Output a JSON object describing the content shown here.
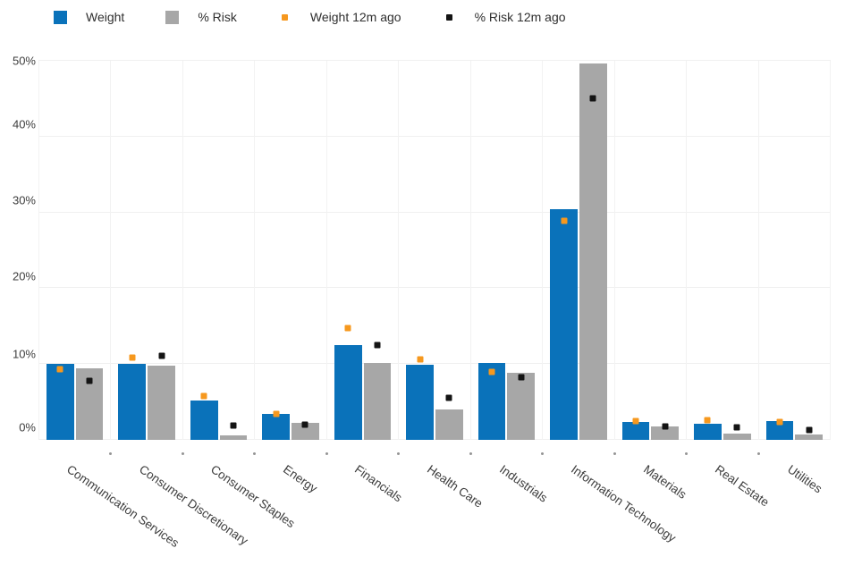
{
  "legend": {
    "items": [
      {
        "label": "Weight",
        "swatch": "square",
        "color": "#0a72ba"
      },
      {
        "label": "% Risk",
        "swatch": "square",
        "color": "#a7a7a7"
      },
      {
        "label": "Weight 12m ago",
        "swatch": "small-square",
        "color": "#f6981e"
      },
      {
        "label": "% Risk 12m ago",
        "swatch": "small-square",
        "color": "#141414"
      }
    ]
  },
  "chart_data": {
    "type": "bar",
    "title": "",
    "xlabel": "",
    "ylabel": "",
    "ylim": [
      0,
      50
    ],
    "yticks": [
      "0%",
      "10%",
      "20%",
      "30%",
      "40%",
      "50%"
    ],
    "grid": true,
    "legend_position": "top-left",
    "categories": [
      "Communication Services",
      "Consumer Discretionary",
      "Consumer Staples",
      "Energy",
      "Financials",
      "Health Care",
      "Industrials",
      "Information Technology",
      "Materials",
      "Real Estate",
      "Utilities"
    ],
    "series": [
      {
        "name": "Weight",
        "type": "bar",
        "color": "#0a72ba",
        "values": [
          10.0,
          10.0,
          5.2,
          3.4,
          12.5,
          9.9,
          10.2,
          30.4,
          2.4,
          2.1,
          2.5
        ]
      },
      {
        "name": "% Risk",
        "type": "bar",
        "color": "#a7a7a7",
        "values": [
          9.4,
          9.8,
          0.6,
          2.2,
          10.2,
          4.0,
          8.9,
          49.6,
          1.8,
          0.8,
          0.7
        ]
      },
      {
        "name": "Weight 12m ago",
        "type": "marker",
        "color": "#f6981e",
        "values": [
          9.3,
          10.8,
          5.8,
          3.4,
          14.7,
          10.6,
          9.0,
          28.9,
          2.5,
          2.6,
          2.4
        ]
      },
      {
        "name": "% Risk 12m ago",
        "type": "marker",
        "color": "#141414",
        "values": [
          7.8,
          11.1,
          1.9,
          2.0,
          12.5,
          5.6,
          8.3,
          45.0,
          1.8,
          1.6,
          1.3
        ]
      }
    ]
  }
}
